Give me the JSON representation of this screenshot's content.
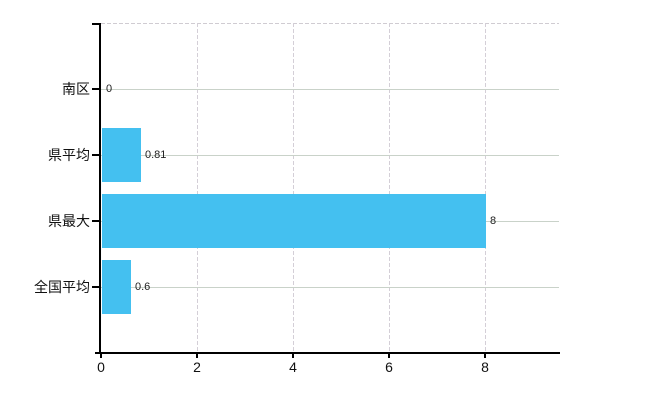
{
  "chart_data": {
    "type": "bar",
    "orientation": "horizontal",
    "title": "",
    "xlabel": "",
    "ylabel": "",
    "categories": [
      "南区",
      "県平均",
      "県最大",
      "全国平均"
    ],
    "values": [
      0,
      0.81,
      8,
      0.6
    ],
    "value_labels": [
      "0",
      "0.81",
      "8",
      "0.6"
    ],
    "x_ticks": [
      0,
      2,
      4,
      6,
      8
    ],
    "x_tick_labels": [
      "0",
      "2",
      "4",
      "6",
      "8"
    ],
    "xlim": [
      0,
      9.55
    ],
    "grid": true,
    "legend": false,
    "gridline_style": {
      "vertical": "dashed",
      "horizontal": "solid",
      "top_border": "dashed"
    },
    "colors": {
      "bar": "#44c0f0",
      "vertical_gridline": "#d4cfd7",
      "horizontal_gridline": "#c9d2c9",
      "axis": "#000000",
      "text": "#111111",
      "value_text": "#222222",
      "background": "#ffffff"
    }
  }
}
